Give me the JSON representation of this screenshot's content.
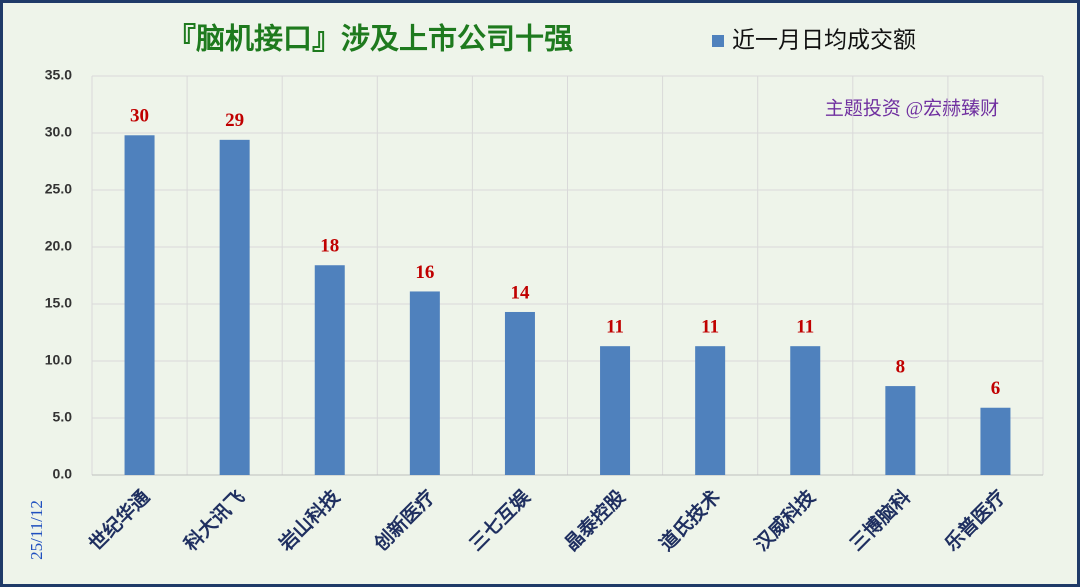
{
  "chart_data": {
    "type": "bar",
    "title": "『脑机接口』涉及上市公司十强",
    "annotation": "主题投资 @宏赫臻财",
    "date": "25/11/12",
    "categories": [
      "世纪华通",
      "科大讯飞",
      "岩山科技",
      "创新医疗",
      "三七互娱",
      "晶泰控股",
      "道氏技术",
      "汉威科技",
      "三博脑科",
      "乐普医疗"
    ],
    "series": [
      {
        "name": "近一月日均成交额",
        "color": "#4f81bd",
        "values": [
          29.8,
          29.4,
          18.4,
          16.1,
          14.3,
          11.3,
          11.3,
          11.3,
          7.8,
          5.9
        ],
        "value_labels": [
          "30",
          "29",
          "18",
          "16",
          "14",
          "11",
          "11",
          "11",
          "8",
          "6"
        ]
      }
    ],
    "ylim": [
      0,
      35
    ],
    "yticks": [
      {
        "value": 0,
        "label": "0.0"
      },
      {
        "value": 5,
        "label": "5.0"
      },
      {
        "value": 10,
        "label": "10.0"
      },
      {
        "value": 15,
        "label": "15.0"
      },
      {
        "value": 20,
        "label": "20.0"
      },
      {
        "value": 25,
        "label": "25.0"
      },
      {
        "value": 30,
        "label": "30.0"
      },
      {
        "value": 35,
        "label": "35.0"
      }
    ],
    "grid": true
  }
}
